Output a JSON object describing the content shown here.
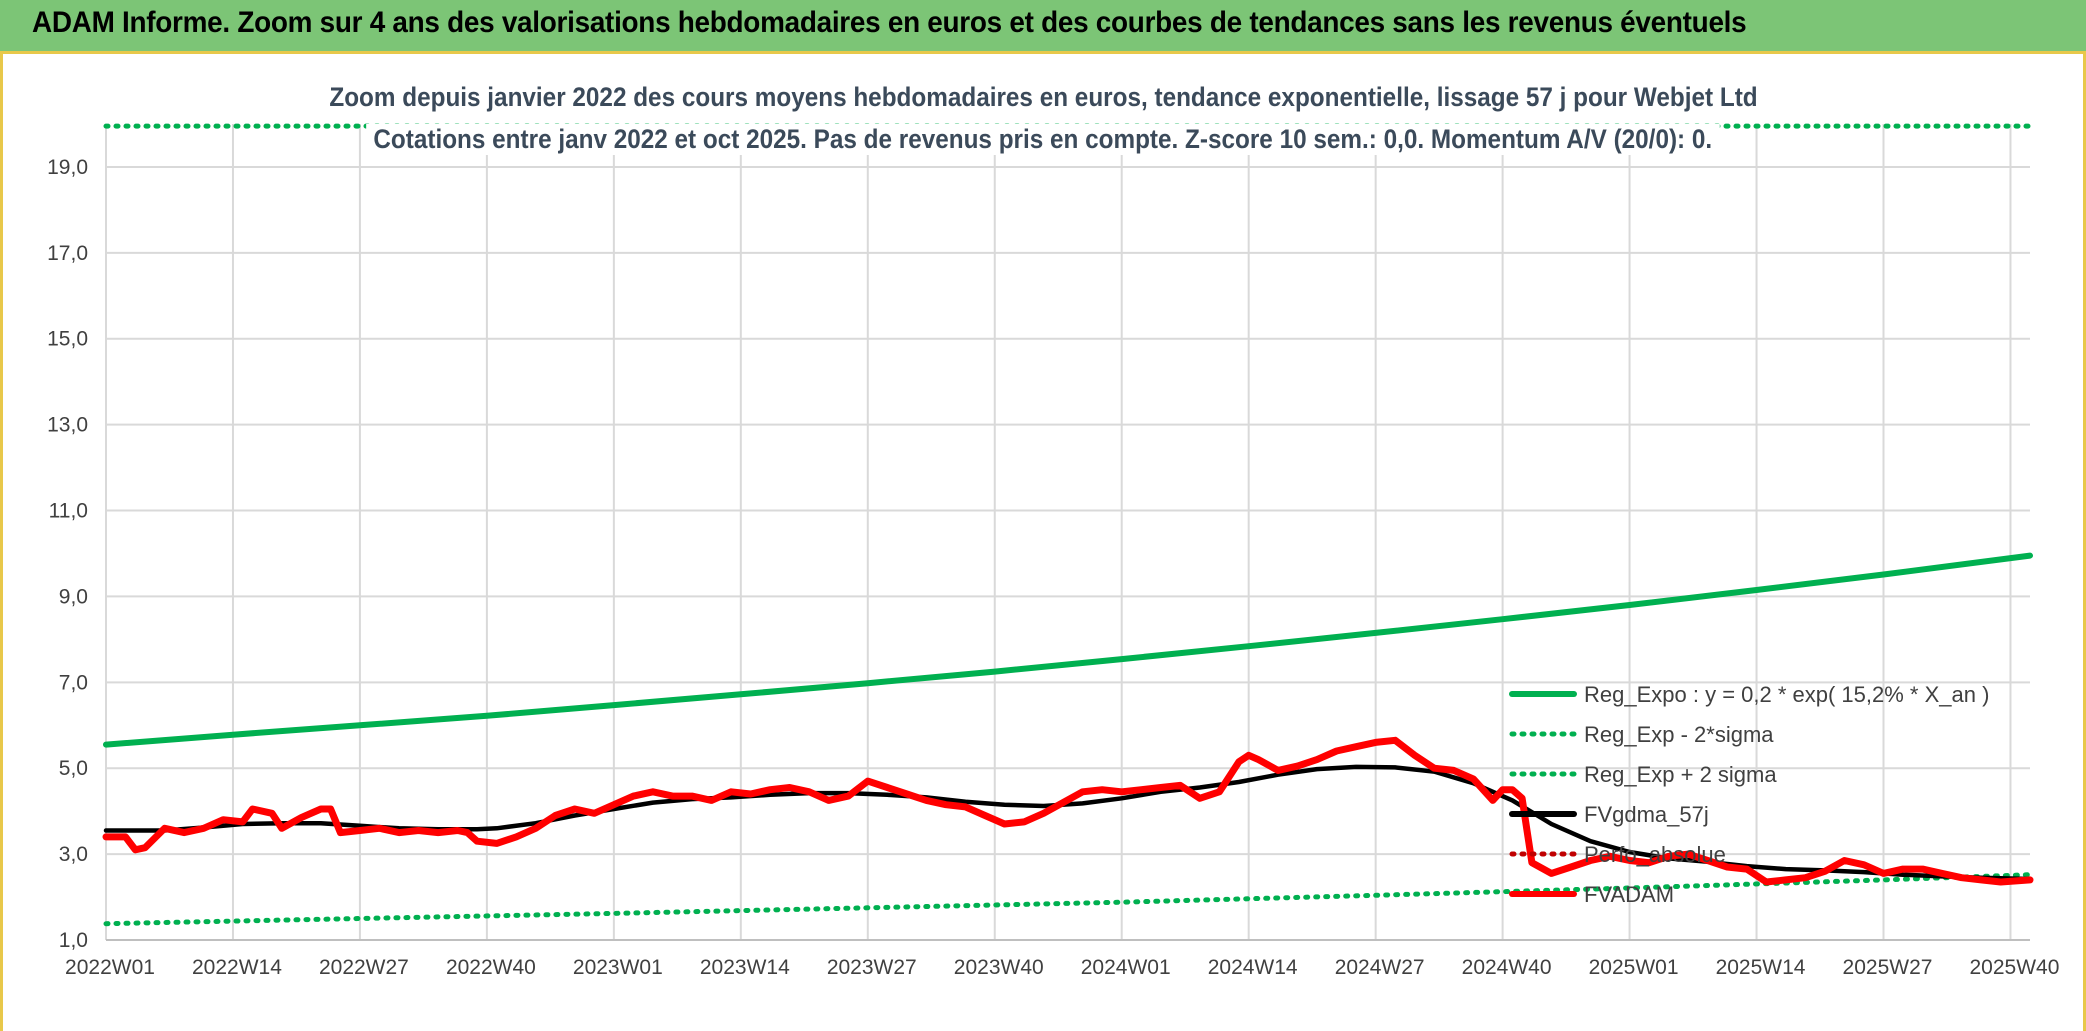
{
  "banner": {
    "title": "ADAM Informe. Zoom sur 4 ans des valorisations hebdomadaires en euros et des courbes de tendances sans les revenus éventuels"
  },
  "chart_data": {
    "type": "line",
    "title": "Zoom depuis janvier 2022 des cours moyens hebdomadaires en euros, tendance exponentielle, lissage 57 j pour Webjet Ltd",
    "subtitle": "Cotations entre janv 2022 et oct 2025. Pas de revenus pris en compte. Z-score 10 sem.: 0,0. Momentum A/V (20/0): 0.",
    "xlabel": "",
    "ylabel": "",
    "ylim": [
      1.0,
      20.0
    ],
    "yticks": [
      "1,0",
      "3,0",
      "5,0",
      "7,0",
      "9,0",
      "11,0",
      "13,0",
      "15,0",
      "17,0",
      "19,0"
    ],
    "ytick_values": [
      1,
      3,
      5,
      7,
      9,
      11,
      13,
      15,
      17,
      19
    ],
    "xlim": [
      0,
      197
    ],
    "xticks": [
      "2022W01",
      "2022W14",
      "2022W27",
      "2022W40",
      "2023W01",
      "2023W14",
      "2023W27",
      "2023W40",
      "2024W01",
      "2024W14",
      "2024W27",
      "2024W40",
      "2025W01",
      "2025W14",
      "2025W27",
      "2025W40"
    ],
    "xtick_values": [
      0,
      13,
      26,
      39,
      52,
      65,
      78,
      91,
      104,
      117,
      130,
      143,
      156,
      169,
      182,
      195
    ],
    "grid": true,
    "legend_position": "right",
    "series": [
      {
        "name": "Reg_Expo : y = 0,2 * exp( 15,2% *  X_an )",
        "color": "#00b050",
        "style": "solid",
        "width": 6,
        "x": [
          0,
          13,
          26,
          39,
          52,
          65,
          78,
          91,
          104,
          117,
          130,
          143,
          156,
          169,
          182,
          197
        ],
        "values": [
          5.55,
          5.78,
          6.0,
          6.22,
          6.47,
          6.72,
          6.98,
          7.25,
          7.54,
          7.84,
          8.15,
          8.47,
          8.8,
          9.15,
          9.51,
          9.95
        ]
      },
      {
        "name": "Reg_Exp - 2*sigma",
        "color": "#00b050",
        "style": "dotted",
        "width": 5,
        "x": [
          0,
          26,
          52,
          78,
          104,
          130,
          156,
          182,
          197
        ],
        "values": [
          1.38,
          1.5,
          1.62,
          1.75,
          1.88,
          2.04,
          2.21,
          2.4,
          2.52
        ]
      },
      {
        "name": "Reg_Exp + 2 sigma",
        "color": "#00b050",
        "style": "dotted",
        "width": 5,
        "x": [
          0,
          197
        ],
        "values": [
          19.95,
          19.95
        ]
      },
      {
        "name": "FVgdma_57j",
        "color": "#000000",
        "style": "solid",
        "width": 4.5,
        "x": [
          0,
          3,
          6,
          10,
          14,
          18,
          22,
          26,
          30,
          34,
          38,
          40,
          44,
          48,
          52,
          56,
          60,
          64,
          68,
          72,
          76,
          80,
          84,
          88,
          92,
          96,
          100,
          104,
          108,
          112,
          116,
          120,
          124,
          128,
          132,
          136,
          140,
          144,
          148,
          152,
          156,
          160,
          164,
          168,
          172,
          176,
          180,
          184,
          188,
          192,
          197
        ],
        "values": [
          3.55,
          3.55,
          3.55,
          3.62,
          3.7,
          3.72,
          3.72,
          3.66,
          3.6,
          3.58,
          3.58,
          3.6,
          3.72,
          3.9,
          4.05,
          4.2,
          4.28,
          4.32,
          4.38,
          4.42,
          4.42,
          4.38,
          4.32,
          4.22,
          4.15,
          4.12,
          4.18,
          4.3,
          4.45,
          4.55,
          4.68,
          4.85,
          4.98,
          5.03,
          5.02,
          4.92,
          4.65,
          4.25,
          3.7,
          3.3,
          3.05,
          2.9,
          2.82,
          2.72,
          2.65,
          2.62,
          2.58,
          2.52,
          2.48,
          2.45,
          2.42
        ]
      },
      {
        "name": "Perfo_absolue",
        "color": "#c00000",
        "style": "dotted",
        "width": 4,
        "x": [],
        "values": []
      },
      {
        "name": "FVADAM",
        "color": "#ff0000",
        "style": "solid",
        "width": 7,
        "x": [
          0,
          2,
          3,
          4,
          6,
          8,
          10,
          12,
          14,
          15,
          17,
          18,
          20,
          22,
          23,
          24,
          26,
          28,
          30,
          32,
          34,
          36,
          37,
          38,
          40,
          42,
          44,
          46,
          48,
          50,
          52,
          54,
          56,
          58,
          60,
          62,
          64,
          66,
          68,
          70,
          72,
          74,
          76,
          78,
          80,
          82,
          84,
          86,
          88,
          90,
          92,
          94,
          96,
          98,
          100,
          102,
          104,
          106,
          108,
          110,
          112,
          114,
          116,
          117,
          118,
          120,
          122,
          124,
          126,
          128,
          130,
          132,
          134,
          136,
          138,
          140,
          142,
          143,
          144,
          145,
          146,
          148,
          150,
          152,
          154,
          156,
          158,
          160,
          162,
          164,
          166,
          168,
          170,
          172,
          174,
          176,
          178,
          180,
          182,
          184,
          186,
          188,
          190,
          192,
          194,
          197
        ],
        "values": [
          3.4,
          3.4,
          3.1,
          3.15,
          3.6,
          3.5,
          3.6,
          3.8,
          3.75,
          4.05,
          3.95,
          3.6,
          3.85,
          4.05,
          4.05,
          3.5,
          3.55,
          3.6,
          3.5,
          3.55,
          3.5,
          3.55,
          3.5,
          3.3,
          3.25,
          3.4,
          3.6,
          3.9,
          4.05,
          3.95,
          4.15,
          4.35,
          4.45,
          4.35,
          4.35,
          4.25,
          4.45,
          4.4,
          4.5,
          4.55,
          4.45,
          4.25,
          4.35,
          4.7,
          4.55,
          4.4,
          4.25,
          4.15,
          4.1,
          3.9,
          3.7,
          3.75,
          3.95,
          4.2,
          4.45,
          4.5,
          4.45,
          4.5,
          4.55,
          4.6,
          4.3,
          4.45,
          5.15,
          5.3,
          5.2,
          4.95,
          5.05,
          5.2,
          5.4,
          5.5,
          5.6,
          5.65,
          5.3,
          5.0,
          4.95,
          4.75,
          4.25,
          4.5,
          4.5,
          4.3,
          2.8,
          2.55,
          2.7,
          2.85,
          2.95,
          2.85,
          2.8,
          2.95,
          3.0,
          2.85,
          2.7,
          2.65,
          2.35,
          2.4,
          2.45,
          2.6,
          2.85,
          2.75,
          2.55,
          2.65,
          2.65,
          2.55,
          2.45,
          2.4,
          2.35,
          2.4
        ]
      }
    ]
  }
}
